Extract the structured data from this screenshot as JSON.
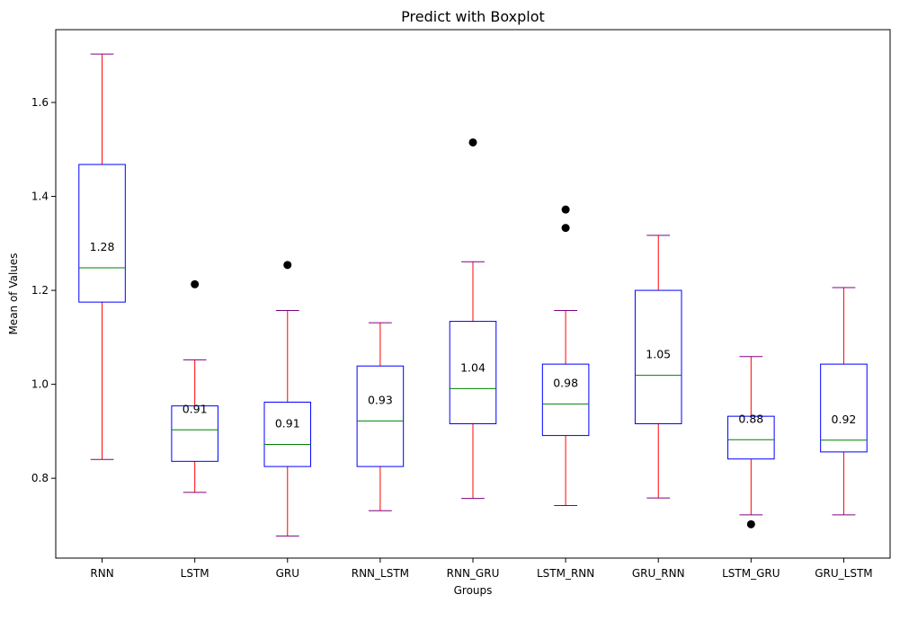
{
  "chart_data": {
    "type": "boxplot",
    "title": "Predict with Boxplot",
    "xlabel": "Groups",
    "ylabel": "Mean of Values",
    "ylim": [
      0.63,
      1.755
    ],
    "yticks": [
      0.8,
      1.0,
      1.2,
      1.4,
      1.6
    ],
    "ytick_labels": [
      "0.8",
      "1.0",
      "1.2",
      "1.4",
      "1.6"
    ],
    "grid": false,
    "colors": {
      "box": "#0000ff",
      "whisker": "#ff0000",
      "cap": "#800080",
      "median": "#008000",
      "flier": "#000000"
    },
    "series": [
      {
        "name": "RNN",
        "whisker_low": 0.84,
        "q1": 1.175,
        "median": 1.248,
        "q3": 1.468,
        "whisker_high": 1.703,
        "mean_label": "1.28",
        "fliers": []
      },
      {
        "name": "LSTM",
        "whisker_low": 0.77,
        "q1": 0.836,
        "median": 0.903,
        "q3": 0.954,
        "whisker_high": 1.052,
        "mean_label": "0.91",
        "fliers": [
          1.213
        ]
      },
      {
        "name": "GRU",
        "whisker_low": 0.677,
        "q1": 0.825,
        "median": 0.872,
        "q3": 0.962,
        "whisker_high": 1.157,
        "mean_label": "0.91",
        "fliers": [
          1.254
        ]
      },
      {
        "name": "RNN_LSTM",
        "whisker_low": 0.731,
        "q1": 0.825,
        "median": 0.922,
        "q3": 1.039,
        "whisker_high": 1.131,
        "mean_label": "0.93",
        "fliers": []
      },
      {
        "name": "RNN_GRU",
        "whisker_low": 0.757,
        "q1": 0.916,
        "median": 0.991,
        "q3": 1.134,
        "whisker_high": 1.261,
        "mean_label": "1.04",
        "fliers": [
          1.515
        ]
      },
      {
        "name": "LSTM_RNN",
        "whisker_low": 0.742,
        "q1": 0.891,
        "median": 0.958,
        "q3": 1.043,
        "whisker_high": 1.157,
        "mean_label": "0.98",
        "fliers": [
          1.333,
          1.372
        ]
      },
      {
        "name": "GRU_RNN",
        "whisker_low": 0.758,
        "q1": 0.916,
        "median": 1.019,
        "q3": 1.2,
        "whisker_high": 1.317,
        "mean_label": "1.05",
        "fliers": []
      },
      {
        "name": "LSTM_GRU",
        "whisker_low": 0.722,
        "q1": 0.841,
        "median": 0.882,
        "q3": 0.932,
        "whisker_high": 1.059,
        "mean_label": "0.88",
        "fliers": [
          0.702
        ]
      },
      {
        "name": "GRU_LSTM",
        "whisker_low": 0.722,
        "q1": 0.856,
        "median": 0.881,
        "q3": 1.043,
        "whisker_high": 1.206,
        "mean_label": "0.92",
        "fliers": []
      }
    ]
  }
}
